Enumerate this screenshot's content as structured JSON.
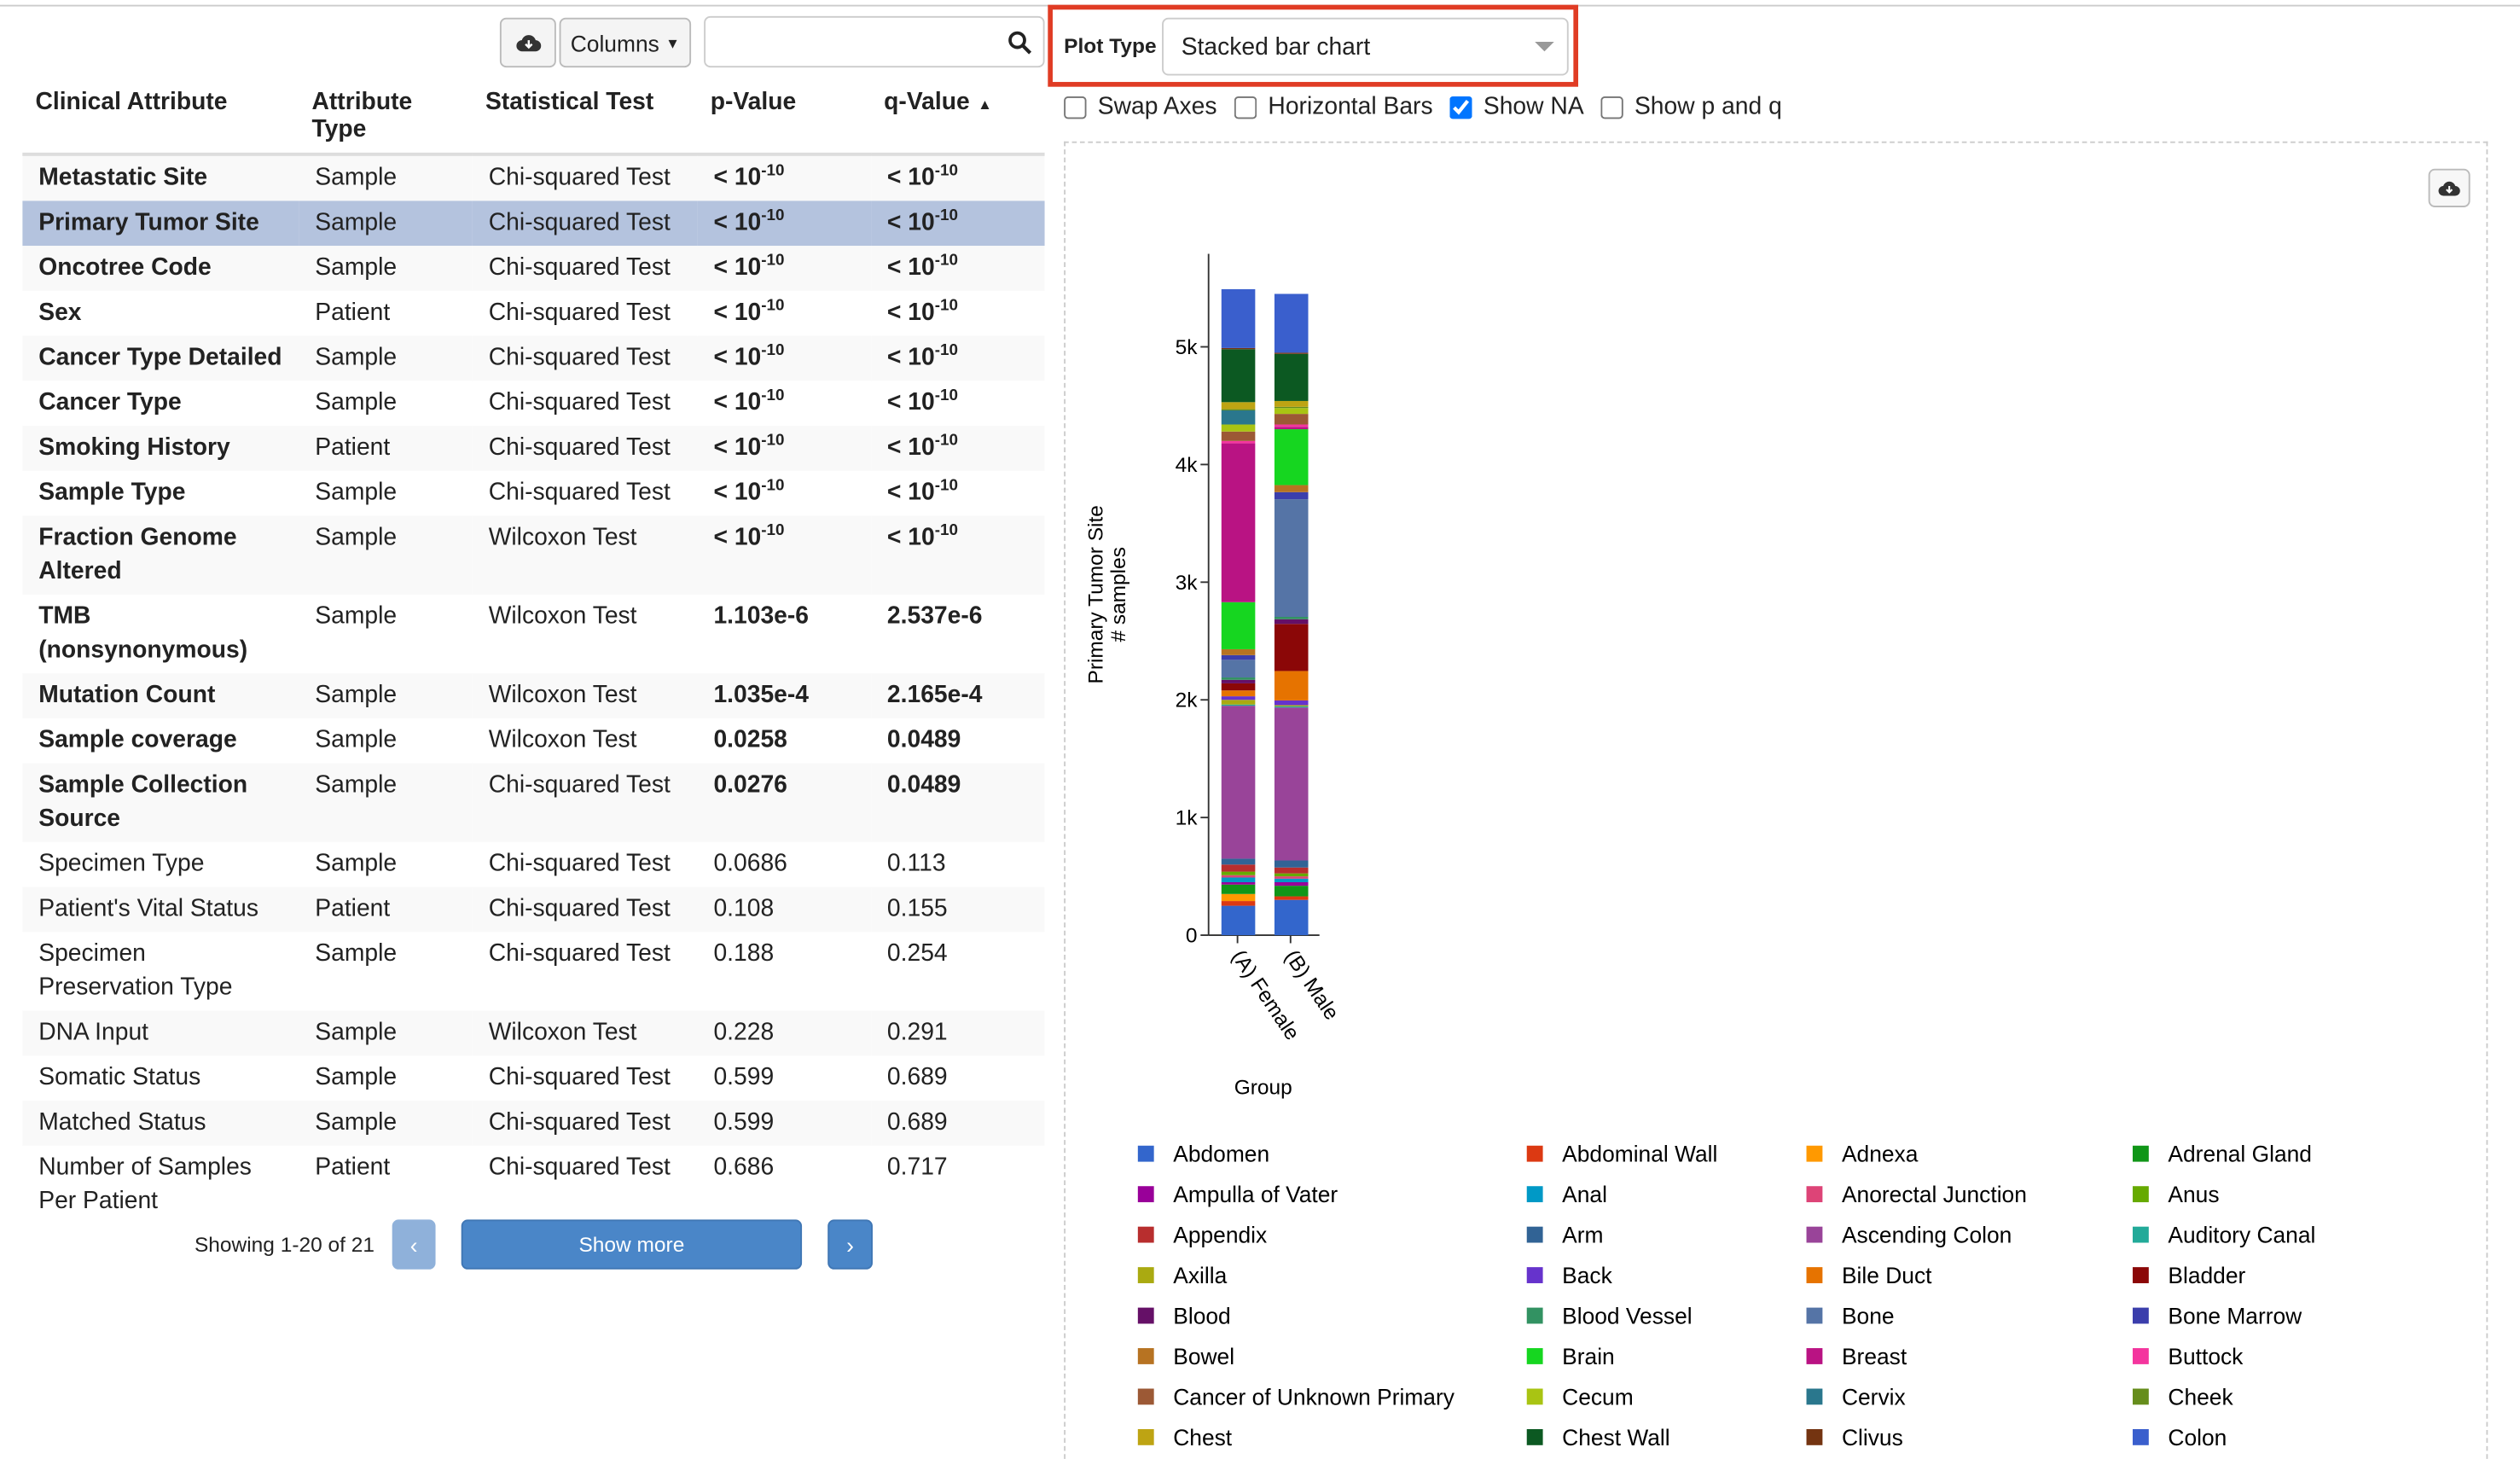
{
  "toolbar": {
    "columns": "Columns",
    "plot_type_label": "Plot Type",
    "plot_type": "Stacked bar chart"
  },
  "options": {
    "labels": [
      "Swap Axes",
      "Horizontal Bars",
      "Show NA",
      "Show p and q"
    ],
    "checked": [
      false,
      false,
      true,
      false
    ]
  },
  "table": {
    "headers": [
      "Clinical Attribute",
      "Attribute Type",
      "Statistical Test",
      "p-Value",
      "q-Value"
    ],
    "selected": 1,
    "rows": [
      {
        "bold": true,
        "cells": [
          "Metastatic Site",
          "Sample",
          "Chi-squared Test",
          {
            "base": "< 10",
            "exp": "-10"
          },
          {
            "base": "< 10",
            "exp": "-10"
          }
        ]
      },
      {
        "bold": true,
        "cells": [
          "Primary Tumor Site",
          "Sample",
          "Chi-squared Test",
          {
            "base": "< 10",
            "exp": "-10"
          },
          {
            "base": "< 10",
            "exp": "-10"
          }
        ]
      },
      {
        "bold": true,
        "cells": [
          "Oncotree Code",
          "Sample",
          "Chi-squared Test",
          {
            "base": "< 10",
            "exp": "-10"
          },
          {
            "base": "< 10",
            "exp": "-10"
          }
        ]
      },
      {
        "bold": true,
        "cells": [
          "Sex",
          "Patient",
          "Chi-squared Test",
          {
            "base": "< 10",
            "exp": "-10"
          },
          {
            "base": "< 10",
            "exp": "-10"
          }
        ]
      },
      {
        "bold": true,
        "cells": [
          "Cancer Type Detailed",
          "Sample",
          "Chi-squared Test",
          {
            "base": "< 10",
            "exp": "-10"
          },
          {
            "base": "< 10",
            "exp": "-10"
          }
        ]
      },
      {
        "bold": true,
        "cells": [
          "Cancer Type",
          "Sample",
          "Chi-squared Test",
          {
            "base": "< 10",
            "exp": "-10"
          },
          {
            "base": "< 10",
            "exp": "-10"
          }
        ]
      },
      {
        "bold": true,
        "cells": [
          "Smoking History",
          "Patient",
          "Chi-squared Test",
          {
            "base": "< 10",
            "exp": "-10"
          },
          {
            "base": "< 10",
            "exp": "-10"
          }
        ]
      },
      {
        "bold": true,
        "cells": [
          "Sample Type",
          "Sample",
          "Chi-squared Test",
          {
            "base": "< 10",
            "exp": "-10"
          },
          {
            "base": "< 10",
            "exp": "-10"
          }
        ]
      },
      {
        "bold": true,
        "cells": [
          "Fraction Genome Altered",
          "Sample",
          "Wilcoxon Test",
          {
            "base": "< 10",
            "exp": "-10"
          },
          {
            "base": "< 10",
            "exp": "-10"
          }
        ]
      },
      {
        "bold": true,
        "cells": [
          "TMB (nonsynonymous)",
          "Sample",
          "Wilcoxon Test",
          "1.103e-6",
          "2.537e-6"
        ]
      },
      {
        "bold": true,
        "cells": [
          "Mutation Count",
          "Sample",
          "Wilcoxon Test",
          "1.035e-4",
          "2.165e-4"
        ]
      },
      {
        "bold": true,
        "cells": [
          "Sample coverage",
          "Sample",
          "Wilcoxon Test",
          "0.0258",
          "0.0489"
        ]
      },
      {
        "bold": true,
        "cells": [
          "Sample Collection Source",
          "Sample",
          "Chi-squared Test",
          "0.0276",
          "0.0489"
        ]
      },
      {
        "bold": false,
        "cells": [
          "Specimen Type",
          "Sample",
          "Chi-squared Test",
          "0.0686",
          "0.113"
        ]
      },
      {
        "bold": false,
        "cells": [
          "Patient's Vital Status",
          "Patient",
          "Chi-squared Test",
          "0.108",
          "0.155"
        ]
      },
      {
        "bold": false,
        "cells": [
          "Specimen Preservation Type",
          "Sample",
          "Chi-squared Test",
          "0.188",
          "0.254"
        ]
      },
      {
        "bold": false,
        "cells": [
          "DNA Input",
          "Sample",
          "Wilcoxon Test",
          "0.228",
          "0.291"
        ]
      },
      {
        "bold": false,
        "cells": [
          "Somatic Status",
          "Sample",
          "Chi-squared Test",
          "0.599",
          "0.689"
        ]
      },
      {
        "bold": false,
        "cells": [
          "Matched Status",
          "Sample",
          "Chi-squared Test",
          "0.599",
          "0.689"
        ]
      },
      {
        "bold": false,
        "cells": [
          "Number of Samples Per Patient",
          "Patient",
          "Chi-squared Test",
          "0.686",
          "0.717"
        ]
      }
    ]
  },
  "pagination": {
    "showing": "Showing 1-20 of 21",
    "prev": "‹",
    "show_more": "Show more",
    "next": "›"
  },
  "chart_data": {
    "type": "stacked_bar",
    "y_label": [
      "Primary Tumor Site",
      "# samples"
    ],
    "x_label": "Group",
    "categories": [
      "(A) Female",
      "(B) Male"
    ],
    "ylim": [
      0,
      5790
    ],
    "yticks": [
      0,
      {
        "value": 1000,
        "label": "1k"
      },
      {
        "value": 2000,
        "label": "2k"
      },
      {
        "value": 3000,
        "label": "3k"
      },
      {
        "value": 4000,
        "label": "4k"
      },
      {
        "value": 5000,
        "label": "5k"
      }
    ],
    "series": [
      {
        "name": "Abdomen",
        "color": "#3366cc",
        "values": [
          250,
          300
        ]
      },
      {
        "name": "Abdominal Wall",
        "color": "#dc3912",
        "values": [
          40,
          30
        ]
      },
      {
        "name": "Adnexa",
        "color": "#ff9900",
        "values": [
          60,
          0
        ]
      },
      {
        "name": "Adrenal Gland",
        "color": "#109618",
        "values": [
          80,
          90
        ]
      },
      {
        "name": "Ampulla of Vater",
        "color": "#990099",
        "values": [
          20,
          30
        ]
      },
      {
        "name": "Anal",
        "color": "#0099c6",
        "values": [
          40,
          30
        ]
      },
      {
        "name": "Anorectal Junction",
        "color": "#dd4477",
        "values": [
          20,
          20
        ]
      },
      {
        "name": "Anus",
        "color": "#66aa00",
        "values": [
          30,
          25
        ]
      },
      {
        "name": "Appendix",
        "color": "#b82e2e",
        "values": [
          60,
          50
        ]
      },
      {
        "name": "Arm",
        "color": "#316395",
        "values": [
          50,
          60
        ]
      },
      {
        "name": "Ascending Colon",
        "color": "#994499",
        "values": [
          1300,
          1300
        ]
      },
      {
        "name": "Auditory Canal",
        "color": "#22aa99",
        "values": [
          10,
          10
        ]
      },
      {
        "name": "Axilla",
        "color": "#aaaa11",
        "values": [
          40,
          10
        ]
      },
      {
        "name": "Back",
        "color": "#6633cc",
        "values": [
          30,
          40
        ]
      },
      {
        "name": "Bile Duct",
        "color": "#e67300",
        "values": [
          50,
          250
        ]
      },
      {
        "name": "Bladder",
        "color": "#8b0707",
        "values": [
          60,
          400
        ]
      },
      {
        "name": "Blood",
        "color": "#651067",
        "values": [
          30,
          40
        ]
      },
      {
        "name": "Blood Vessel",
        "color": "#329262",
        "values": [
          20,
          20
        ]
      },
      {
        "name": "Bone",
        "color": "#5574a6",
        "values": [
          150,
          1000
        ]
      },
      {
        "name": "Bone Marrow",
        "color": "#3b3eac",
        "values": [
          40,
          60
        ]
      },
      {
        "name": "Bowel",
        "color": "#b77322",
        "values": [
          50,
          60
        ]
      },
      {
        "name": "Brain",
        "color": "#16d620",
        "values": [
          400,
          475
        ]
      },
      {
        "name": "Breast",
        "color": "#b91383",
        "values": [
          1350,
          20
        ]
      },
      {
        "name": "Buttock",
        "color": "#f4359e",
        "values": [
          20,
          20
        ]
      },
      {
        "name": "Cancer of Unknown Primary",
        "color": "#9c5935",
        "values": [
          80,
          90
        ]
      },
      {
        "name": "Cecum",
        "color": "#a9c413",
        "values": [
          60,
          50
        ]
      },
      {
        "name": "Cervix",
        "color": "#2a778d",
        "values": [
          120,
          0
        ]
      },
      {
        "name": "Cheek",
        "color": "#668d1c",
        "values": [
          10,
          10
        ]
      },
      {
        "name": "Chest",
        "color": "#bea413",
        "values": [
          60,
          50
        ]
      },
      {
        "name": "Chest Wall",
        "color": "#0c5922",
        "values": [
          450,
          400
        ]
      },
      {
        "name": "Clivus",
        "color": "#743411",
        "values": [
          10,
          10
        ]
      },
      {
        "name": "Colon",
        "color": "#3a5fcd",
        "values": [
          500,
          500
        ]
      }
    ]
  }
}
